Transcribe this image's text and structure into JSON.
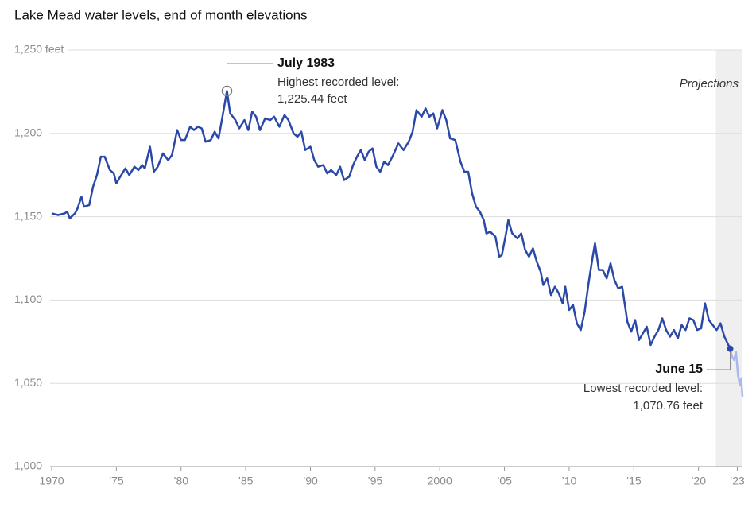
{
  "chart_data": {
    "type": "line",
    "title": "Lake Mead water levels, end of month elevations",
    "projection_label": "Projections",
    "xlim": [
      1970,
      2023.4
    ],
    "ylim": [
      1000,
      1250
    ],
    "xticks": [
      1970,
      {
        "value": 1975,
        "label": "’75"
      },
      {
        "value": 1980,
        "label": "’80"
      },
      {
        "value": 1985,
        "label": "’85"
      },
      {
        "value": 1990,
        "label": "’90"
      },
      {
        "value": 1995,
        "label": "’95"
      },
      2000,
      {
        "value": 2005,
        "label": "’05"
      },
      {
        "value": 2010,
        "label": "’10"
      },
      {
        "value": 2015,
        "label": "’15"
      },
      {
        "value": 2020,
        "label": "’20"
      },
      {
        "value": 2023,
        "label": "’23"
      }
    ],
    "yticks": [
      {
        "value": 1000,
        "label": "1,000"
      },
      {
        "value": 1050,
        "label": "1,050"
      },
      {
        "value": 1100,
        "label": "1,100"
      },
      {
        "value": 1150,
        "label": "1,150"
      },
      {
        "value": 1200,
        "label": "1,200"
      },
      {
        "value": 1250,
        "label": "1,250 feet"
      }
    ],
    "grid": true,
    "series": [
      {
        "color": "#2a48a8",
        "x": [
          1970.0,
          1970.5,
          1971.0,
          1971.2,
          1971.4,
          1971.8,
          1972.0,
          1972.3,
          1972.5,
          1972.9,
          1973.2,
          1973.5,
          1973.8,
          1974.1,
          1974.5,
          1974.8,
          1975.0,
          1975.3,
          1975.7,
          1976.0,
          1976.4,
          1976.7,
          1977.0,
          1977.2,
          1977.6,
          1977.9,
          1978.2,
          1978.6,
          1979.0,
          1979.3,
          1979.7,
          1980.0,
          1980.3,
          1980.7,
          1981.0,
          1981.3,
          1981.6,
          1981.9,
          1982.3,
          1982.6,
          1982.9,
          1983.2,
          1983.55,
          1983.8,
          1984.2,
          1984.5,
          1984.9,
          1985.2,
          1985.5,
          1985.8,
          1986.1,
          1986.5,
          1986.9,
          1987.2,
          1987.6,
          1988.0,
          1988.3,
          1988.7,
          1989.0,
          1989.3,
          1989.6,
          1990.0,
          1990.3,
          1990.6,
          1991.0,
          1991.3,
          1991.6,
          1992.0,
          1992.3,
          1992.6,
          1993.0,
          1993.3,
          1993.6,
          1993.9,
          1994.2,
          1994.5,
          1994.8,
          1995.1,
          1995.4,
          1995.7,
          1996.0,
          1996.4,
          1996.8,
          1997.2,
          1997.6,
          1997.9,
          1998.2,
          1998.6,
          1998.9,
          1999.2,
          1999.5,
          1999.8,
          2000.2,
          2000.5,
          2000.8,
          2001.2,
          2001.6,
          2001.9,
          2002.2,
          2002.5,
          2002.8,
          2003.1,
          2003.4,
          2003.6,
          2003.9,
          2004.3,
          2004.6,
          2004.8,
          2005.1,
          2005.3,
          2005.6,
          2006.0,
          2006.3,
          2006.6,
          2006.9,
          2007.2,
          2007.5,
          2007.8,
          2008.0,
          2008.3,
          2008.6,
          2008.9,
          2009.2,
          2009.5,
          2009.7,
          2010.0,
          2010.3,
          2010.6,
          2010.9,
          2011.2,
          2011.5,
          2011.8,
          2012.0,
          2012.3,
          2012.6,
          2012.9,
          2013.2,
          2013.5,
          2013.8,
          2014.1,
          2014.5,
          2014.8,
          2015.1,
          2015.4,
          2015.7,
          2016.0,
          2016.3,
          2016.6,
          2016.9,
          2017.2,
          2017.5,
          2017.8,
          2018.1,
          2018.4,
          2018.7,
          2019.0,
          2019.3,
          2019.6,
          2019.9,
          2020.2,
          2020.5,
          2020.8,
          2021.1,
          2021.4,
          2021.7,
          2022.0,
          2022.45
        ],
        "values": [
          1152,
          1151,
          1152,
          1153,
          1149,
          1152,
          1155,
          1162,
          1156,
          1157,
          1168,
          1175,
          1186,
          1186,
          1178,
          1176,
          1170,
          1174,
          1179,
          1175,
          1180,
          1178,
          1181,
          1179,
          1192,
          1177,
          1180,
          1188,
          1184,
          1187,
          1202,
          1196,
          1196,
          1204,
          1202,
          1204,
          1203,
          1195,
          1196,
          1201,
          1197,
          1210,
          1225.44,
          1212,
          1208,
          1203,
          1208,
          1202,
          1213,
          1210,
          1202,
          1209,
          1208,
          1210,
          1204,
          1211,
          1208,
          1200,
          1198,
          1201,
          1190,
          1192,
          1184,
          1180,
          1181,
          1176,
          1178,
          1175,
          1180,
          1172,
          1174,
          1181,
          1186,
          1190,
          1184,
          1189,
          1191,
          1180,
          1177,
          1183,
          1181,
          1187,
          1194,
          1190,
          1195,
          1201,
          1214,
          1210,
          1215,
          1210,
          1212,
          1203,
          1214,
          1208,
          1197,
          1196,
          1183,
          1177,
          1177,
          1164,
          1156,
          1153,
          1148,
          1140,
          1141,
          1138,
          1126,
          1127,
          1139,
          1148,
          1140,
          1137,
          1140,
          1130,
          1126,
          1131,
          1123,
          1117,
          1109,
          1113,
          1103,
          1108,
          1104,
          1098,
          1108,
          1094,
          1097,
          1086,
          1082,
          1093,
          1110,
          1125,
          1134,
          1118,
          1118,
          1113,
          1122,
          1112,
          1107,
          1108,
          1087,
          1081,
          1088,
          1076,
          1080,
          1084,
          1073,
          1078,
          1082,
          1089,
          1082,
          1078,
          1082,
          1077,
          1085,
          1082,
          1089,
          1088,
          1082,
          1083,
          1098,
          1088,
          1085,
          1082,
          1086,
          1078,
          1070.76
        ]
      },
      {
        "color": "#a9b9f0",
        "x": [
          2022.45,
          2022.6,
          2022.75,
          2022.9,
          2023.05,
          2023.2,
          2023.3,
          2023.4
        ],
        "values": [
          1070.76,
          1066,
          1064,
          1069,
          1055,
          1049,
          1053,
          1042
        ]
      }
    ],
    "annotations": [
      {
        "title": "July 1983",
        "line1": "Highest recorded level:",
        "line2": "1,225.44 feet"
      },
      {
        "title": "June 15",
        "line1": "Lowest recorded level:",
        "line2": "1,070.76 feet"
      }
    ]
  }
}
